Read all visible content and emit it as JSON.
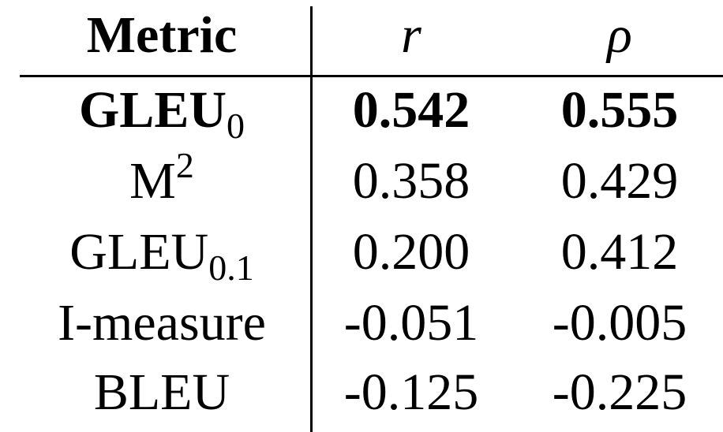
{
  "table": {
    "header": {
      "metric": "Metric",
      "r": "r",
      "rho": "ρ"
    },
    "rows": [
      {
        "name": "GLEU",
        "sub": "0",
        "sup": "",
        "r": "0.542",
        "rho": "0.555",
        "bold": true
      },
      {
        "name": "M",
        "sub": "",
        "sup": "2",
        "r": "0.358",
        "rho": "0.429",
        "bold": false
      },
      {
        "name": "GLEU",
        "sub": "0.1",
        "sup": "",
        "r": "0.200",
        "rho": "0.412",
        "bold": false
      },
      {
        "name": "I-measure",
        "sub": "",
        "sup": "",
        "r": "-0.051",
        "rho": "-0.005",
        "bold": false
      },
      {
        "name": "BLEU",
        "sub": "",
        "sup": "",
        "r": "-0.125",
        "rho": "-0.225",
        "bold": false
      }
    ]
  }
}
